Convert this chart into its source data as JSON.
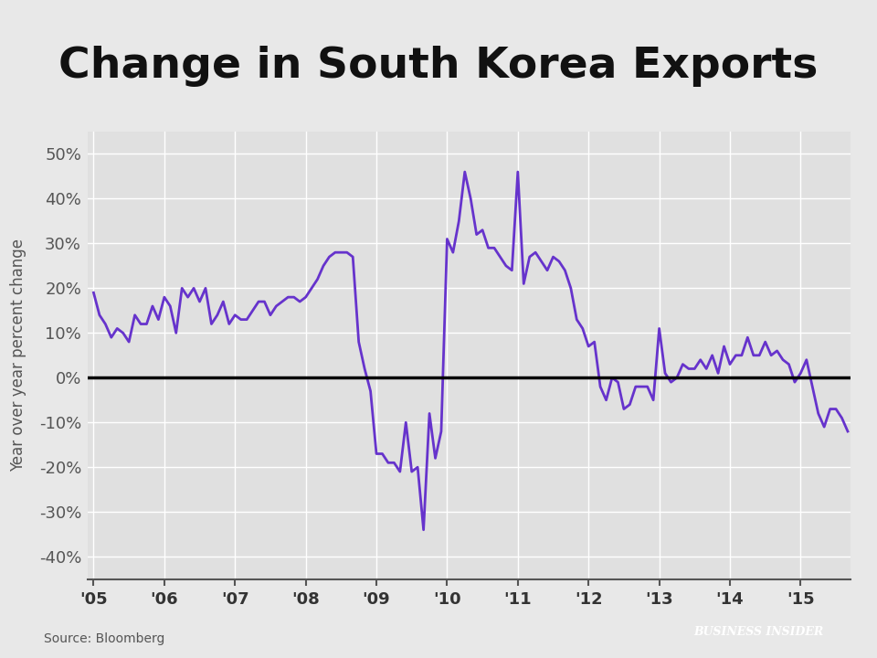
{
  "title": "Change in South Korea Exports",
  "ylabel": "Year over year percent change",
  "source_text": "Source: Bloomberg",
  "line_color": "#6633CC",
  "background_color": "#E8E8E8",
  "plot_bg_color": "#E0E0E0",
  "zero_line_color": "#000000",
  "grid_color": "#FFFFFF",
  "title_fontsize": 34,
  "axis_label_fontsize": 12,
  "tick_fontsize": 13,
  "ylim": [
    -45,
    55
  ],
  "yticks": [
    -40,
    -30,
    -20,
    -10,
    0,
    10,
    20,
    30,
    40,
    50
  ],
  "values": [
    19.0,
    14.0,
    12.0,
    9.0,
    11.0,
    10.0,
    8.0,
    14.0,
    12.0,
    12.0,
    16.0,
    13.0,
    18.0,
    16.0,
    10.0,
    20.0,
    18.0,
    20.0,
    17.0,
    20.0,
    12.0,
    14.0,
    17.0,
    12.0,
    14.0,
    13.0,
    13.0,
    15.0,
    17.0,
    17.0,
    14.0,
    16.0,
    17.0,
    18.0,
    18.0,
    17.0,
    18.0,
    20.0,
    22.0,
    25.0,
    27.0,
    28.0,
    28.0,
    28.0,
    27.0,
    8.0,
    2.0,
    -3.0,
    -17.0,
    -17.0,
    -19.0,
    -19.0,
    -21.0,
    -10.0,
    -21.0,
    -20.0,
    -34.0,
    -8.0,
    -18.0,
    -12.0,
    31.0,
    28.0,
    35.0,
    46.0,
    40.0,
    32.0,
    33.0,
    29.0,
    29.0,
    27.0,
    25.0,
    24.0,
    46.0,
    21.0,
    27.0,
    28.0,
    26.0,
    24.0,
    27.0,
    26.0,
    24.0,
    20.0,
    13.0,
    11.0,
    7.0,
    8.0,
    -2.0,
    -5.0,
    0.0,
    -1.0,
    -7.0,
    -6.0,
    -2.0,
    -2.0,
    -2.0,
    -5.0,
    11.0,
    1.0,
    -1.0,
    0.0,
    3.0,
    2.0,
    2.0,
    4.0,
    2.0,
    5.0,
    1.0,
    7.0,
    3.0,
    5.0,
    5.0,
    9.0,
    5.0,
    5.0,
    8.0,
    5.0,
    6.0,
    4.0,
    3.0,
    -1.0,
    1.0,
    4.0,
    -2.0,
    -8.0,
    -11.0,
    -7.0,
    -7.0,
    -9.0,
    -12.0
  ],
  "xtick_positions": [
    0,
    12,
    24,
    36,
    48,
    60,
    72,
    84,
    96,
    108,
    120
  ],
  "xtick_labels": [
    "'05",
    "'06",
    "'07",
    "'08",
    "'09",
    "'10",
    "'11",
    "'12",
    "'13",
    "'14",
    "'15"
  ]
}
